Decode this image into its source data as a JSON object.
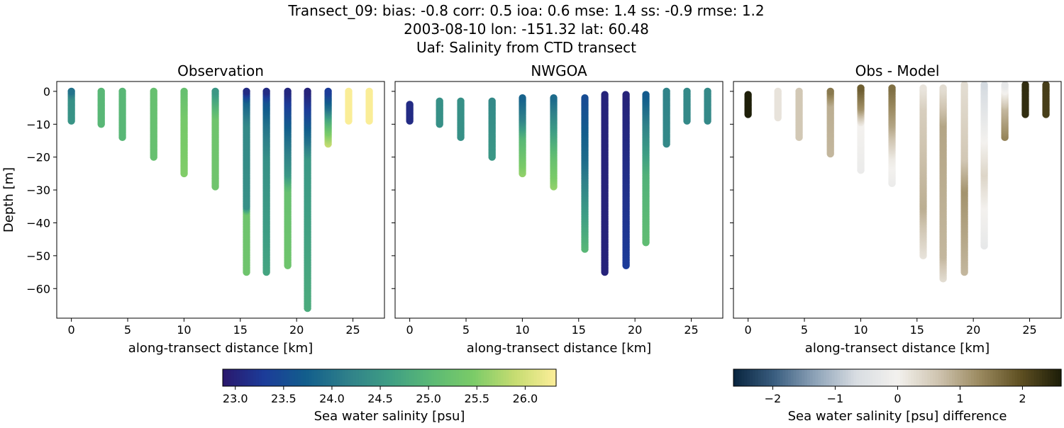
{
  "title_lines": [
    "Transect_09: bias: -0.8  corr: 0.5  ioa: 0.6  mse: 1.4  ss: -0.9  rmse: 1.2",
    "2003-08-10 lon: -151.32 lat: 60.48",
    "Uaf: Salinity from CTD transect"
  ],
  "chart_data": [
    {
      "type": "scatter",
      "title": "Observation",
      "xlabel": "along-transect distance [km]",
      "ylabel": "Depth [m]",
      "xlim": [
        -1.3,
        27.8
      ],
      "ylim": [
        -69,
        3
      ],
      "xticks": [
        0,
        5,
        10,
        15,
        20,
        25
      ],
      "yticks": [
        0,
        -10,
        -20,
        -30,
        -40,
        -50,
        -60
      ],
      "colormap": "haline",
      "vmin": 22.87,
      "vmax": 26.32,
      "stations": [
        {
          "x": 0.0,
          "profile": [
            [
              0,
              24.0
            ],
            [
              -2,
              24.4
            ],
            [
              -9,
              24.45
            ]
          ]
        },
        {
          "x": 2.65,
          "profile": [
            [
              0,
              25.0
            ],
            [
              -10,
              25.0
            ]
          ]
        },
        {
          "x": 4.53,
          "profile": [
            [
              0,
              25.0
            ],
            [
              -14,
              25.0
            ]
          ]
        },
        {
          "x": 7.31,
          "profile": [
            [
              0,
              25.2
            ],
            [
              -20,
              25.2
            ]
          ]
        },
        {
          "x": 10.01,
          "profile": [
            [
              0,
              25.2
            ],
            [
              -8,
              25.4
            ],
            [
              -25,
              25.5
            ]
          ]
        },
        {
          "x": 12.78,
          "profile": [
            [
              0,
              24.5
            ],
            [
              -8,
              25.3
            ],
            [
              -29,
              25.3
            ]
          ]
        },
        {
          "x": 15.55,
          "profile": [
            [
              0,
              23.1
            ],
            [
              -3,
              23.8
            ],
            [
              -10,
              24.3
            ],
            [
              -35,
              24.4
            ],
            [
              -37,
              25.3
            ],
            [
              -55,
              25.3
            ]
          ]
        },
        {
          "x": 17.32,
          "profile": [
            [
              0,
              23.1
            ],
            [
              -3,
              23.6
            ],
            [
              -10,
              24.0
            ],
            [
              -20,
              24.4
            ],
            [
              -45,
              24.6
            ],
            [
              -55,
              24.7
            ]
          ]
        },
        {
          "x": 19.21,
          "profile": [
            [
              0,
              23.05
            ],
            [
              -5,
              23.4
            ],
            [
              -15,
              24.0
            ],
            [
              -25,
              24.5
            ],
            [
              -30,
              25.2
            ],
            [
              -53,
              25.3
            ]
          ]
        },
        {
          "x": 20.97,
          "profile": [
            [
              0,
              23.0
            ],
            [
              -5,
              23.3
            ],
            [
              -15,
              24.0
            ],
            [
              -20,
              24.5
            ],
            [
              -66,
              24.8
            ]
          ]
        },
        {
          "x": 22.8,
          "profile": [
            [
              0,
              23.3
            ],
            [
              -5,
              24.0
            ],
            [
              -8,
              24.7
            ],
            [
              -12,
              25.4
            ],
            [
              -16,
              25.9
            ]
          ]
        },
        {
          "x": 24.62,
          "profile": [
            [
              0,
              26.3
            ],
            [
              -9,
              26.3
            ]
          ]
        },
        {
          "x": 26.45,
          "profile": [
            [
              0,
              26.3
            ],
            [
              -9,
              26.3
            ]
          ]
        }
      ]
    },
    {
      "type": "scatter",
      "title": "NWGOA",
      "xlabel": "along-transect distance [km]",
      "xlim": [
        -1.3,
        27.8
      ],
      "ylim": [
        -69,
        3
      ],
      "xticks": [
        0,
        5,
        10,
        15,
        20,
        25
      ],
      "colormap": "haline",
      "vmin": 22.87,
      "vmax": 26.32,
      "stations": [
        {
          "x": 0.0,
          "profile": [
            [
              -4,
              23.1
            ],
            [
              -9,
              23.1
            ]
          ]
        },
        {
          "x": 2.65,
          "profile": [
            [
              -3,
              24.4
            ],
            [
              -10,
              24.4
            ]
          ]
        },
        {
          "x": 4.53,
          "profile": [
            [
              -3,
              24.4
            ],
            [
              -14,
              24.4
            ]
          ]
        },
        {
          "x": 7.31,
          "profile": [
            [
              -3,
              24.3
            ],
            [
              -20,
              24.5
            ]
          ]
        },
        {
          "x": 10.01,
          "profile": [
            [
              -2,
              23.8
            ],
            [
              -8,
              24.2
            ],
            [
              -14,
              25.0
            ],
            [
              -25,
              25.6
            ]
          ]
        },
        {
          "x": 12.78,
          "profile": [
            [
              -2,
              23.9
            ],
            [
              -20,
              25.2
            ],
            [
              -29,
              25.6
            ]
          ]
        },
        {
          "x": 15.55,
          "profile": [
            [
              -2,
              23.5
            ],
            [
              -20,
              23.9
            ],
            [
              -35,
              24.5
            ],
            [
              -48,
              25.0
            ]
          ]
        },
        {
          "x": 17.32,
          "profile": [
            [
              -1,
              23.0
            ],
            [
              -55,
              23.0
            ]
          ]
        },
        {
          "x": 19.21,
          "profile": [
            [
              -1,
              23.0
            ],
            [
              -53,
              23.3
            ]
          ]
        },
        {
          "x": 20.97,
          "profile": [
            [
              -1,
              23.7
            ],
            [
              -10,
              24.2
            ],
            [
              -25,
              24.9
            ],
            [
              -46,
              25.1
            ]
          ]
        },
        {
          "x": 22.8,
          "profile": [
            [
              0,
              24.2
            ],
            [
              -16,
              24.3
            ]
          ]
        },
        {
          "x": 24.62,
          "profile": [
            [
              0,
              24.3
            ],
            [
              -9,
              24.3
            ]
          ]
        },
        {
          "x": 26.45,
          "profile": [
            [
              0,
              24.3
            ],
            [
              -9,
              24.3
            ]
          ]
        }
      ]
    },
    {
      "type": "scatter",
      "title": "Obs - Model",
      "xlabel": "along-transect distance [km]",
      "xlim": [
        -1.3,
        27.8
      ],
      "ylim": [
        -69,
        3
      ],
      "xticks": [
        0,
        5,
        10,
        15,
        20,
        25
      ],
      "colormap": "diff",
      "vmin": -2.63,
      "vmax": 2.62,
      "stations": [
        {
          "x": 0.0,
          "profile": [
            [
              -1,
              2.6
            ],
            [
              -7,
              2.6
            ]
          ]
        },
        {
          "x": 2.65,
          "profile": [
            [
              0,
              0.2
            ],
            [
              -8,
              0.2
            ]
          ]
        },
        {
          "x": 4.53,
          "profile": [
            [
              0,
              0.6
            ],
            [
              -14,
              0.6
            ]
          ]
        },
        {
          "x": 7.31,
          "profile": [
            [
              0,
              1.5
            ],
            [
              -4,
              0.9
            ],
            [
              -19,
              0.8
            ]
          ]
        },
        {
          "x": 10.01,
          "profile": [
            [
              1,
              1.8
            ],
            [
              -5,
              1.2
            ],
            [
              -10,
              0.0
            ],
            [
              -24,
              -0.2
            ]
          ]
        },
        {
          "x": 12.78,
          "profile": [
            [
              1,
              1.6
            ],
            [
              -10,
              1.0
            ],
            [
              -20,
              0.1
            ],
            [
              -28,
              -0.2
            ]
          ]
        },
        {
          "x": 15.55,
          "profile": [
            [
              1,
              0.2
            ],
            [
              -5,
              0.5
            ],
            [
              -35,
              0.9
            ],
            [
              -50,
              0.2
            ]
          ]
        },
        {
          "x": 17.32,
          "profile": [
            [
              1,
              0.3
            ],
            [
              -10,
              1.0
            ],
            [
              -50,
              0.8
            ],
            [
              -57,
              0.3
            ]
          ]
        },
        {
          "x": 19.21,
          "profile": [
            [
              2,
              0.3
            ],
            [
              -20,
              0.6
            ],
            [
              -30,
              1.2
            ],
            [
              -55,
              0.8
            ]
          ]
        },
        {
          "x": 20.97,
          "profile": [
            [
              2,
              -0.7
            ],
            [
              -15,
              0.0
            ],
            [
              -25,
              0.4
            ],
            [
              -35,
              0.0
            ],
            [
              -47,
              -0.3
            ]
          ]
        },
        {
          "x": 22.8,
          "profile": [
            [
              2,
              -0.3
            ],
            [
              -5,
              0.8
            ],
            [
              -14,
              1.4
            ]
          ]
        },
        {
          "x": 24.62,
          "profile": [
            [
              2,
              2.4
            ],
            [
              -7,
              2.4
            ]
          ]
        },
        {
          "x": 26.45,
          "profile": [
            [
              2,
              2.2
            ],
            [
              -7,
              2.2
            ]
          ]
        }
      ]
    }
  ],
  "colorbars": [
    {
      "label": "Sea water salinity [psu]",
      "colormap": "haline",
      "vmin": 22.87,
      "vmax": 26.32,
      "ticks": [
        23.0,
        23.5,
        24.0,
        24.5,
        25.0,
        25.5,
        26.0
      ],
      "tick_labels": [
        "23.0",
        "23.5",
        "24.0",
        "24.5",
        "25.0",
        "25.5",
        "26.0"
      ]
    },
    {
      "label": "Sea water salinity [psu] difference",
      "colormap": "diff",
      "vmin": -2.63,
      "vmax": 2.62,
      "ticks": [
        -2,
        -1,
        0,
        1,
        2
      ],
      "tick_labels": [
        "−2",
        "−1",
        "0",
        "1",
        "2"
      ]
    }
  ],
  "colormaps": {
    "haline": [
      "#2a186c",
      "#1c3c99",
      "#125e8c",
      "#2f808a",
      "#3e9e84",
      "#5bb975",
      "#7acb68",
      "#c5dc71",
      "#fdee99"
    ],
    "diff": [
      "#08243e",
      "#3a5e80",
      "#8ea3b8",
      "#d8dde2",
      "#f3f1ee",
      "#cfc4b0",
      "#9b8a60",
      "#5f5022",
      "#1c1d08"
    ]
  }
}
